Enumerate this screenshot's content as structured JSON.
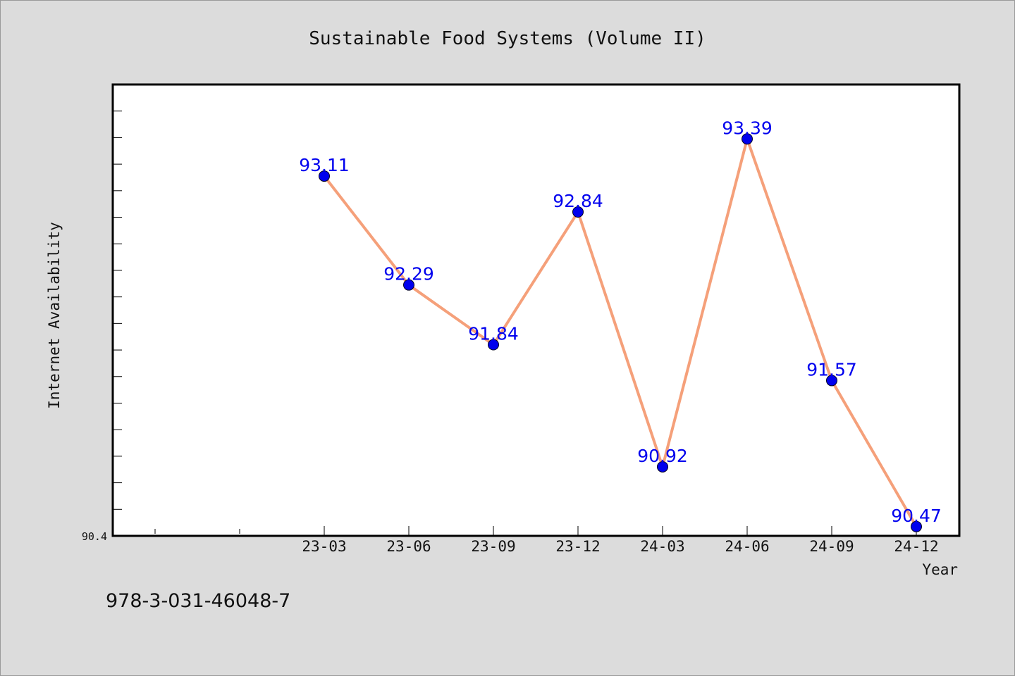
{
  "chart_data": {
    "type": "line",
    "title": "Sustainable Food Systems (Volume II)",
    "xlabel": "Year",
    "ylabel": "Internet Availability",
    "categories": [
      "23-03",
      "23-06",
      "23-09",
      "23-12",
      "24-03",
      "24-06",
      "24-09",
      "24-12"
    ],
    "series": [
      {
        "values": [
          93.11,
          92.29,
          91.84,
          92.84,
          90.92,
          93.39,
          91.57,
          90.47
        ],
        "labels": [
          "93.11",
          "92.29",
          "91.84",
          "92.84",
          "90.92",
          "93.39",
          "91.57",
          "90.47"
        ]
      }
    ],
    "y_tick_label": "90.4",
    "ylim": [
      90.4,
      93.8
    ],
    "grid": false,
    "line_color": "#f5a07a",
    "marker_color": "#0000ee",
    "label_color": "#0000ee"
  },
  "footer": {
    "isbn": "978-3-031-46048-7"
  }
}
